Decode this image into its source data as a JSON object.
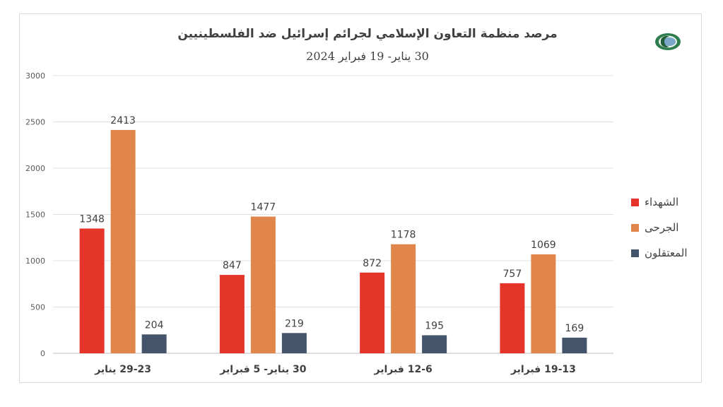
{
  "header": {
    "title": "مرصد منظمة التعاون الإسلامي لجرائم إسرائيل ضد الفلسطينيين",
    "subtitle": "30 يناير- 19 فبراير 2024",
    "logo_icon": "oic-logo-icon"
  },
  "colors": {
    "martyrs": "#e5342a",
    "wounded": "#e0864b",
    "detained": "#44546a",
    "grid": "#e0e0e0"
  },
  "chart_data": {
    "type": "bar",
    "categories": [
      "29-23 يناير",
      "30 يناير- 5 فبراير",
      "12-6 فبراير",
      "19-13 فبراير"
    ],
    "series": [
      {
        "name": "الشهداء",
        "values": [
          1348,
          847,
          872,
          757
        ]
      },
      {
        "name": "الجرحى",
        "values": [
          2413,
          1477,
          1178,
          1069
        ]
      },
      {
        "name": "المعتقلون",
        "values": [
          204,
          219,
          195,
          169
        ]
      }
    ],
    "ylim": [
      0,
      3000
    ],
    "yticks": [
      0,
      500,
      1000,
      1500,
      2000,
      2500,
      3000
    ],
    "grid": true,
    "legend_position": "right"
  }
}
